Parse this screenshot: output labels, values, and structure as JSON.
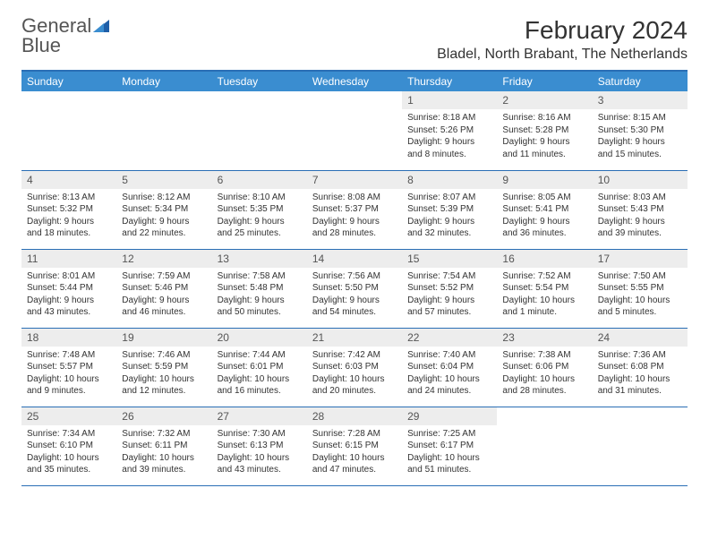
{
  "logo": {
    "text1": "General",
    "text2": "Blue"
  },
  "title": "February 2024",
  "location": "Bladel, North Brabant, The Netherlands",
  "colors": {
    "header_bg": "#3a8dd0",
    "border": "#2a6eb5",
    "daynum_bg": "#ededed",
    "text": "#333333"
  },
  "day_headers": [
    "Sunday",
    "Monday",
    "Tuesday",
    "Wednesday",
    "Thursday",
    "Friday",
    "Saturday"
  ],
  "weeks": [
    [
      {
        "empty": true
      },
      {
        "empty": true
      },
      {
        "empty": true
      },
      {
        "empty": true
      },
      {
        "n": "1",
        "sr": "Sunrise: 8:18 AM",
        "ss": "Sunset: 5:26 PM",
        "d1": "Daylight: 9 hours",
        "d2": "and 8 minutes."
      },
      {
        "n": "2",
        "sr": "Sunrise: 8:16 AM",
        "ss": "Sunset: 5:28 PM",
        "d1": "Daylight: 9 hours",
        "d2": "and 11 minutes."
      },
      {
        "n": "3",
        "sr": "Sunrise: 8:15 AM",
        "ss": "Sunset: 5:30 PM",
        "d1": "Daylight: 9 hours",
        "d2": "and 15 minutes."
      }
    ],
    [
      {
        "n": "4",
        "sr": "Sunrise: 8:13 AM",
        "ss": "Sunset: 5:32 PM",
        "d1": "Daylight: 9 hours",
        "d2": "and 18 minutes."
      },
      {
        "n": "5",
        "sr": "Sunrise: 8:12 AM",
        "ss": "Sunset: 5:34 PM",
        "d1": "Daylight: 9 hours",
        "d2": "and 22 minutes."
      },
      {
        "n": "6",
        "sr": "Sunrise: 8:10 AM",
        "ss": "Sunset: 5:35 PM",
        "d1": "Daylight: 9 hours",
        "d2": "and 25 minutes."
      },
      {
        "n": "7",
        "sr": "Sunrise: 8:08 AM",
        "ss": "Sunset: 5:37 PM",
        "d1": "Daylight: 9 hours",
        "d2": "and 28 minutes."
      },
      {
        "n": "8",
        "sr": "Sunrise: 8:07 AM",
        "ss": "Sunset: 5:39 PM",
        "d1": "Daylight: 9 hours",
        "d2": "and 32 minutes."
      },
      {
        "n": "9",
        "sr": "Sunrise: 8:05 AM",
        "ss": "Sunset: 5:41 PM",
        "d1": "Daylight: 9 hours",
        "d2": "and 36 minutes."
      },
      {
        "n": "10",
        "sr": "Sunrise: 8:03 AM",
        "ss": "Sunset: 5:43 PM",
        "d1": "Daylight: 9 hours",
        "d2": "and 39 minutes."
      }
    ],
    [
      {
        "n": "11",
        "sr": "Sunrise: 8:01 AM",
        "ss": "Sunset: 5:44 PM",
        "d1": "Daylight: 9 hours",
        "d2": "and 43 minutes."
      },
      {
        "n": "12",
        "sr": "Sunrise: 7:59 AM",
        "ss": "Sunset: 5:46 PM",
        "d1": "Daylight: 9 hours",
        "d2": "and 46 minutes."
      },
      {
        "n": "13",
        "sr": "Sunrise: 7:58 AM",
        "ss": "Sunset: 5:48 PM",
        "d1": "Daylight: 9 hours",
        "d2": "and 50 minutes."
      },
      {
        "n": "14",
        "sr": "Sunrise: 7:56 AM",
        "ss": "Sunset: 5:50 PM",
        "d1": "Daylight: 9 hours",
        "d2": "and 54 minutes."
      },
      {
        "n": "15",
        "sr": "Sunrise: 7:54 AM",
        "ss": "Sunset: 5:52 PM",
        "d1": "Daylight: 9 hours",
        "d2": "and 57 minutes."
      },
      {
        "n": "16",
        "sr": "Sunrise: 7:52 AM",
        "ss": "Sunset: 5:54 PM",
        "d1": "Daylight: 10 hours",
        "d2": "and 1 minute."
      },
      {
        "n": "17",
        "sr": "Sunrise: 7:50 AM",
        "ss": "Sunset: 5:55 PM",
        "d1": "Daylight: 10 hours",
        "d2": "and 5 minutes."
      }
    ],
    [
      {
        "n": "18",
        "sr": "Sunrise: 7:48 AM",
        "ss": "Sunset: 5:57 PM",
        "d1": "Daylight: 10 hours",
        "d2": "and 9 minutes."
      },
      {
        "n": "19",
        "sr": "Sunrise: 7:46 AM",
        "ss": "Sunset: 5:59 PM",
        "d1": "Daylight: 10 hours",
        "d2": "and 12 minutes."
      },
      {
        "n": "20",
        "sr": "Sunrise: 7:44 AM",
        "ss": "Sunset: 6:01 PM",
        "d1": "Daylight: 10 hours",
        "d2": "and 16 minutes."
      },
      {
        "n": "21",
        "sr": "Sunrise: 7:42 AM",
        "ss": "Sunset: 6:03 PM",
        "d1": "Daylight: 10 hours",
        "d2": "and 20 minutes."
      },
      {
        "n": "22",
        "sr": "Sunrise: 7:40 AM",
        "ss": "Sunset: 6:04 PM",
        "d1": "Daylight: 10 hours",
        "d2": "and 24 minutes."
      },
      {
        "n": "23",
        "sr": "Sunrise: 7:38 AM",
        "ss": "Sunset: 6:06 PM",
        "d1": "Daylight: 10 hours",
        "d2": "and 28 minutes."
      },
      {
        "n": "24",
        "sr": "Sunrise: 7:36 AM",
        "ss": "Sunset: 6:08 PM",
        "d1": "Daylight: 10 hours",
        "d2": "and 31 minutes."
      }
    ],
    [
      {
        "n": "25",
        "sr": "Sunrise: 7:34 AM",
        "ss": "Sunset: 6:10 PM",
        "d1": "Daylight: 10 hours",
        "d2": "and 35 minutes."
      },
      {
        "n": "26",
        "sr": "Sunrise: 7:32 AM",
        "ss": "Sunset: 6:11 PM",
        "d1": "Daylight: 10 hours",
        "d2": "and 39 minutes."
      },
      {
        "n": "27",
        "sr": "Sunrise: 7:30 AM",
        "ss": "Sunset: 6:13 PM",
        "d1": "Daylight: 10 hours",
        "d2": "and 43 minutes."
      },
      {
        "n": "28",
        "sr": "Sunrise: 7:28 AM",
        "ss": "Sunset: 6:15 PM",
        "d1": "Daylight: 10 hours",
        "d2": "and 47 minutes."
      },
      {
        "n": "29",
        "sr": "Sunrise: 7:25 AM",
        "ss": "Sunset: 6:17 PM",
        "d1": "Daylight: 10 hours",
        "d2": "and 51 minutes."
      },
      {
        "empty": true
      },
      {
        "empty": true
      }
    ]
  ]
}
